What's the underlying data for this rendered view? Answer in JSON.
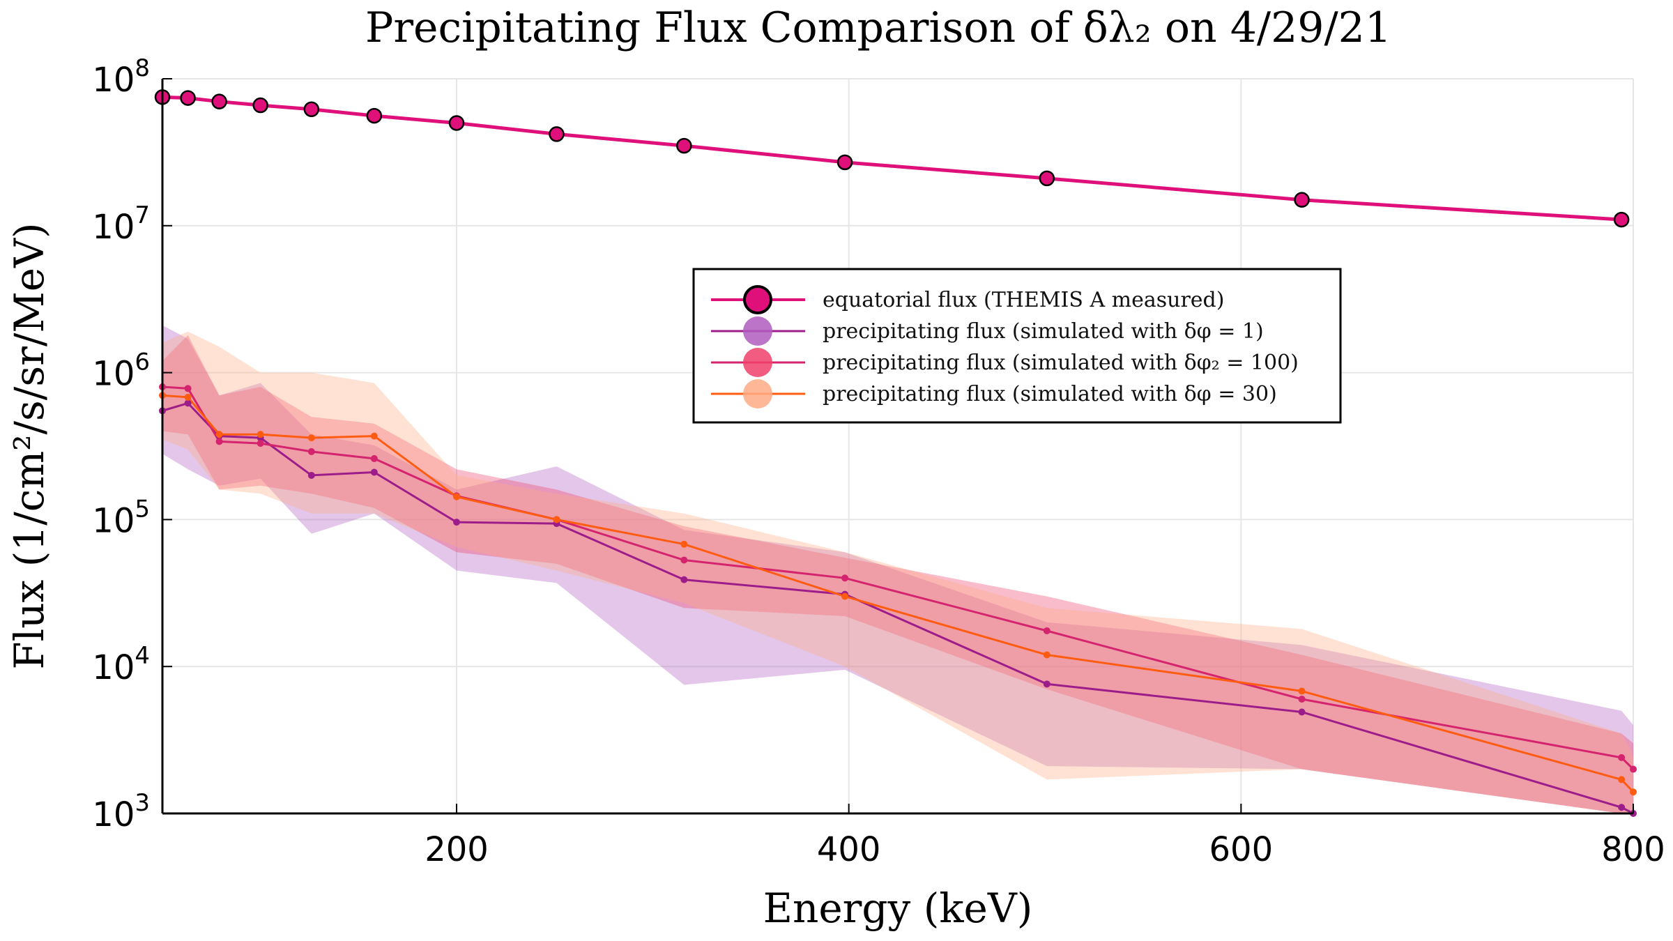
{
  "chart_data": {
    "type": "line",
    "title": "Precipitating Flux Comparison of δλ₂ on 4/29/21",
    "xlabel": "Energy (keV)",
    "ylabel": "Flux (1/cm²/s/sr/MeV)",
    "xlim": [
      50,
      800
    ],
    "ylim": [
      1000,
      100000000
    ],
    "yscale": "log",
    "grid": true,
    "legend_position": "center-right",
    "x_ticks": [
      200,
      400,
      600,
      800
    ],
    "x_tick_labels": [
      "200",
      "400",
      "600",
      "800"
    ],
    "y_ticks": [
      1000,
      10000,
      100000,
      1000000,
      10000000,
      100000000
    ],
    "y_tick_labels": [
      {
        "base": "10",
        "exp": "3"
      },
      {
        "base": "10",
        "exp": "4"
      },
      {
        "base": "10",
        "exp": "5"
      },
      {
        "base": "10",
        "exp": "6"
      },
      {
        "base": "10",
        "exp": "7"
      },
      {
        "base": "10",
        "exp": "8"
      }
    ],
    "series": [
      {
        "name": "equatorial flux (THEMIS A measured)",
        "color": "#e0107b",
        "marker": "large",
        "x": [
          50,
          63,
          79,
          100,
          126,
          158,
          200,
          251,
          316,
          398,
          501,
          631,
          794
        ],
        "y": [
          75000000,
          74000000,
          70000000,
          66000000,
          62000000,
          56000000,
          50000000,
          42000000,
          35000000,
          27000000,
          21000000,
          15000000,
          11000000
        ]
      },
      {
        "name": "precipitating flux (simulated with δφ = 1)",
        "color": "#9c1d8a",
        "band_color": "#b05cc0",
        "x": [
          50,
          63,
          79,
          100,
          126,
          158,
          200,
          251,
          316,
          398,
          501,
          631,
          794,
          800
        ],
        "y": [
          550000,
          620000,
          370000,
          360000,
          200000,
          210000,
          96000,
          94000,
          39000,
          31000,
          7600,
          4900,
          1100,
          1000
        ],
        "band_low": [
          280000,
          220000,
          170000,
          190000,
          80000,
          110000,
          45000,
          37000,
          7500,
          9500,
          2100,
          2000,
          1000,
          1000
        ],
        "band_high": [
          2100000,
          1700000,
          700000,
          850000,
          380000,
          320000,
          160000,
          230000,
          85000,
          60000,
          20000,
          14000,
          5000,
          4000
        ]
      },
      {
        "name": "precipitating flux (simulated with δφ₂ = 100)",
        "color": "#d4246e",
        "band_color": "#ee3f6a",
        "x": [
          50,
          63,
          79,
          100,
          126,
          158,
          200,
          251,
          316,
          398,
          501,
          631,
          794,
          800
        ],
        "y": [
          800000,
          780000,
          340000,
          330000,
          290000,
          260000,
          145000,
          100000,
          53000,
          40000,
          17500,
          6000,
          2400,
          2000
        ],
        "band_low": [
          400000,
          380000,
          160000,
          170000,
          150000,
          120000,
          60000,
          50000,
          25000,
          22000,
          7000,
          2000,
          1000,
          1000
        ],
        "band_high": [
          1200000,
          1800000,
          700000,
          800000,
          500000,
          450000,
          220000,
          160000,
          90000,
          55000,
          30000,
          12000,
          3500,
          3000
        ]
      },
      {
        "name": "precipitating flux (simulated with δφ = 30)",
        "color": "#ff5c12",
        "band_color": "#ffab85",
        "x": [
          50,
          63,
          79,
          100,
          126,
          158,
          200,
          251,
          316,
          398,
          501,
          631,
          794,
          800
        ],
        "y": [
          700000,
          680000,
          380000,
          380000,
          360000,
          370000,
          143000,
          100000,
          68000,
          30000,
          12000,
          6800,
          1700,
          1400
        ],
        "band_low": [
          350000,
          300000,
          160000,
          150000,
          110000,
          110000,
          65000,
          45000,
          27000,
          10000,
          1700,
          2000,
          1000,
          1000
        ],
        "band_high": [
          1600000,
          1900000,
          1500000,
          1000000,
          1000000,
          850000,
          200000,
          150000,
          110000,
          60000,
          25000,
          18000,
          3500,
          2500
        ]
      }
    ]
  }
}
